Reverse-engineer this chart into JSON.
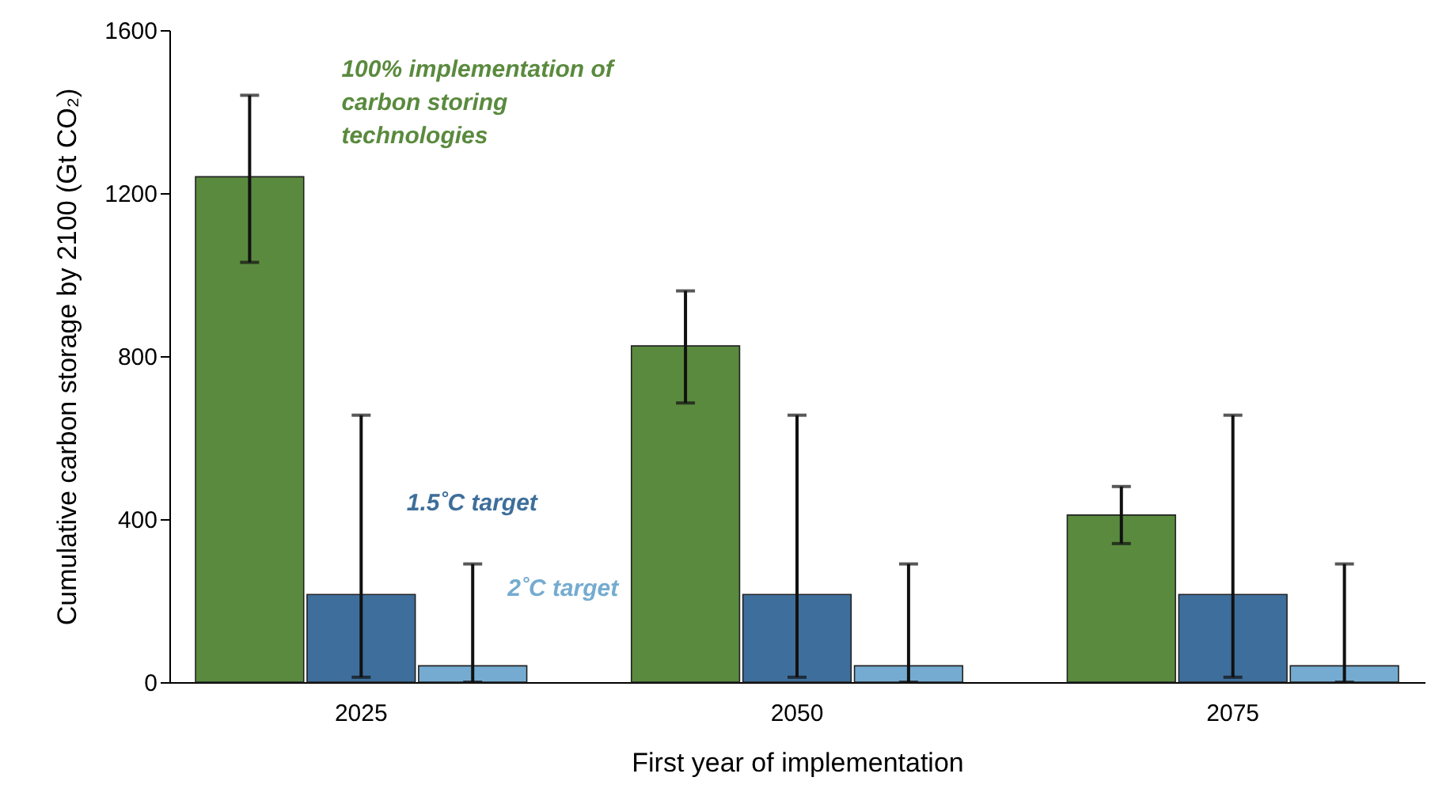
{
  "chart_data": {
    "type": "bar",
    "xlabel": "First year of implementation",
    "ylabel": "Cumulative carbon storage by 2100 (Gt CO₂)",
    "categories": [
      "2025",
      "2050",
      "2075"
    ],
    "series": [
      {
        "name": "100% implementation of carbon storing technologies",
        "color": "#5a8a3e",
        "values": [
          1240,
          825,
          410
        ],
        "errors": [
          [
            1030,
            1440
          ],
          [
            685,
            960
          ],
          [
            340,
            480
          ]
        ]
      },
      {
        "name": "1.5˚C target",
        "color": "#3e6e9b",
        "values": [
          215,
          215,
          215
        ],
        "errors": [
          [
            12,
            655
          ],
          [
            12,
            655
          ],
          [
            12,
            655
          ]
        ]
      },
      {
        "name": "2˚C target",
        "color": "#75abd0",
        "values": [
          40,
          40,
          40
        ],
        "errors": [
          [
            0,
            290
          ],
          [
            0,
            290
          ],
          [
            0,
            290
          ]
        ]
      }
    ],
    "ylim": [
      0,
      1600
    ],
    "yticks": [
      0,
      400,
      800,
      1200,
      1600
    ],
    "grid": false,
    "legend": false
  }
}
